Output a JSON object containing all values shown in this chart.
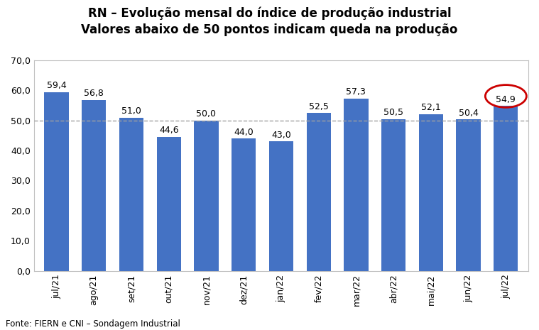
{
  "title_line1": "RN – Evolução mensal do índice de produção industrial",
  "title_line2": "Valores abaixo de 50 pontos indicam queda na produção",
  "categories": [
    "jul/21",
    "ago/21",
    "set/21",
    "out/21",
    "nov/21",
    "dez/21",
    "jan/22",
    "fev/22",
    "mar/22",
    "abr/22",
    "mai/22",
    "jun/22",
    "jul/22"
  ],
  "values": [
    59.4,
    56.8,
    51.0,
    44.6,
    50.0,
    44.0,
    43.0,
    52.5,
    57.3,
    50.5,
    52.1,
    50.4,
    54.9
  ],
  "bar_color": "#4472C4",
  "reference_line": 50.0,
  "reference_line_color": "#A0A0A0",
  "ylim": [
    0,
    70
  ],
  "yticks": [
    0.0,
    10.0,
    20.0,
    30.0,
    40.0,
    50.0,
    60.0,
    70.0
  ],
  "xlabel_rotation": 90,
  "label_fontsize": 9,
  "bar_label_fontsize": 9,
  "title_fontsize": 12,
  "source_text": "Fonte: FIERN e CNI – Sondagem Industrial",
  "source_fontsize": 8.5,
  "highlight_color": "#CC0000",
  "background_color": "#FFFFFF",
  "plot_background": "#FFFFFF",
  "spine_color": "#C0C0C0"
}
